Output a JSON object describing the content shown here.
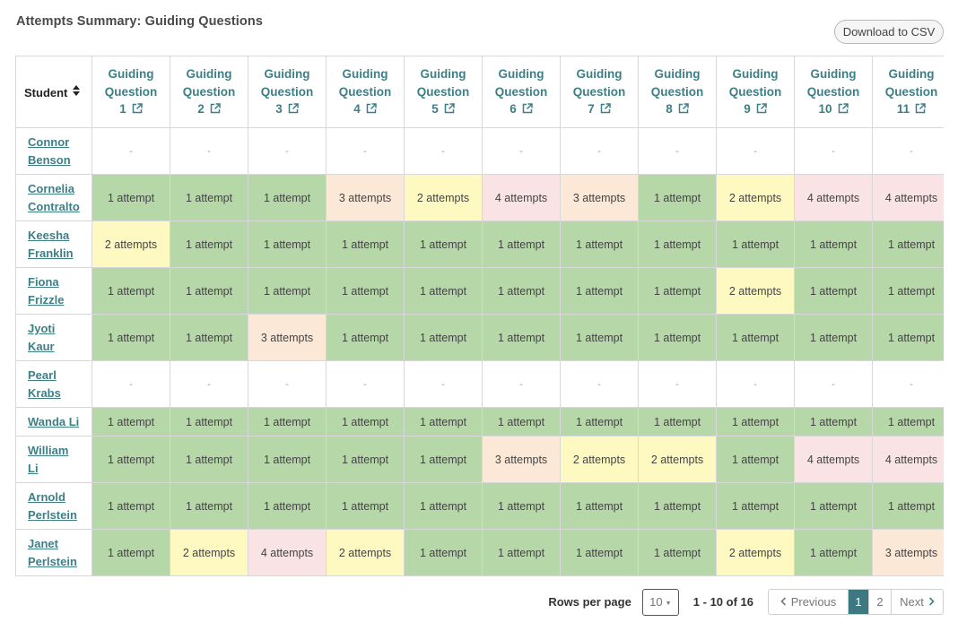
{
  "header": {
    "title": "Attempts Summary: Guiding Questions",
    "download_label": "Download to CSV"
  },
  "table": {
    "student_header": "Student",
    "columns": [
      {
        "line1": "Guiding",
        "line2": "Question",
        "num": "1"
      },
      {
        "line1": "Guiding",
        "line2": "Question",
        "num": "2"
      },
      {
        "line1": "Guiding",
        "line2": "Question",
        "num": "3"
      },
      {
        "line1": "Guiding",
        "line2": "Question",
        "num": "4"
      },
      {
        "line1": "Guiding",
        "line2": "Question",
        "num": "5"
      },
      {
        "line1": "Guiding",
        "line2": "Question",
        "num": "6"
      },
      {
        "line1": "Guiding",
        "line2": "Question",
        "num": "7"
      },
      {
        "line1": "Guiding",
        "line2": "Question",
        "num": "8"
      },
      {
        "line1": "Guiding",
        "line2": "Question",
        "num": "9"
      },
      {
        "line1": "Guiding",
        "line2": "Question",
        "num": "10"
      },
      {
        "line1": "Guiding",
        "line2": "Question",
        "num": "11"
      }
    ],
    "rows": [
      {
        "first": "Connor",
        "last": "Benson",
        "cells": [
          "-",
          "-",
          "-",
          "-",
          "-",
          "-",
          "-",
          "-",
          "-",
          "-",
          "-"
        ]
      },
      {
        "first": "Cornelia",
        "last": "Contralto",
        "cells": [
          "1 attempt",
          "1 attempt",
          "1 attempt",
          "3 attempts",
          "2 attempts",
          "4 attempts",
          "3 attempts",
          "1 attempt",
          "2 attempts",
          "4 attempts",
          "4 attempts"
        ]
      },
      {
        "first": "Keesha",
        "last": "Franklin",
        "cells": [
          "2 attempts",
          "1 attempt",
          "1 attempt",
          "1 attempt",
          "1 attempt",
          "1 attempt",
          "1 attempt",
          "1 attempt",
          "1 attempt",
          "1 attempt",
          "1 attempt"
        ]
      },
      {
        "first": "Fiona",
        "last": "Frizzle",
        "cells": [
          "1 attempt",
          "1 attempt",
          "1 attempt",
          "1 attempt",
          "1 attempt",
          "1 attempt",
          "1 attempt",
          "1 attempt",
          "2 attempts",
          "1 attempt",
          "1 attempt"
        ]
      },
      {
        "first": "Jyoti",
        "last": "Kaur",
        "cells": [
          "1 attempt",
          "1 attempt",
          "3 attempts",
          "1 attempt",
          "1 attempt",
          "1 attempt",
          "1 attempt",
          "1 attempt",
          "1 attempt",
          "1 attempt",
          "1 attempt"
        ]
      },
      {
        "first": "Pearl",
        "last": "Krabs",
        "cells": [
          "-",
          "-",
          "-",
          "-",
          "-",
          "-",
          "-",
          "-",
          "-",
          "-",
          "-"
        ]
      },
      {
        "first": "Wanda Li",
        "last": "",
        "cells": [
          "1 attempt",
          "1 attempt",
          "1 attempt",
          "1 attempt",
          "1 attempt",
          "1 attempt",
          "1 attempt",
          "1 attempt",
          "1 attempt",
          "1 attempt",
          "1 attempt"
        ]
      },
      {
        "first": "William",
        "last": "Li",
        "cells": [
          "1 attempt",
          "1 attempt",
          "1 attempt",
          "1 attempt",
          "1 attempt",
          "3 attempts",
          "2 attempts",
          "2 attempts",
          "1 attempt",
          "4 attempts",
          "4 attempts"
        ]
      },
      {
        "first": "Arnold",
        "last": "Perlstein",
        "cells": [
          "1 attempt",
          "1 attempt",
          "1 attempt",
          "1 attempt",
          "1 attempt",
          "1 attempt",
          "1 attempt",
          "1 attempt",
          "1 attempt",
          "1 attempt",
          "1 attempt"
        ]
      },
      {
        "first": "Janet",
        "last": "Perlstein",
        "cells": [
          "1 attempt",
          "2 attempts",
          "4 attempts",
          "2 attempts",
          "1 attempt",
          "1 attempt",
          "1 attempt",
          "1 attempt",
          "2 attempts",
          "1 attempt",
          "3 attempts"
        ]
      }
    ]
  },
  "colors": {
    "link": "#3e7f86",
    "attempt_1": "#b6d7a8",
    "attempt_2": "#fdf9c0",
    "attempt_3": "#fce8d6",
    "attempt_4": "#fae3e4",
    "active_page": "#3e7880"
  },
  "pagination": {
    "rows_per_page_label": "Rows per page",
    "rows_per_page_value": "10",
    "range_label": "1 - 10 of 16",
    "prev_label": "Previous",
    "next_label": "Next",
    "pages": [
      "1",
      "2"
    ],
    "current_page": "1"
  },
  "icons": {
    "sort": "sort-updown-icon",
    "external": "external-link-icon",
    "caret": "caret-down-icon",
    "prev": "chevron-left-icon",
    "next": "chevron-right-icon"
  }
}
